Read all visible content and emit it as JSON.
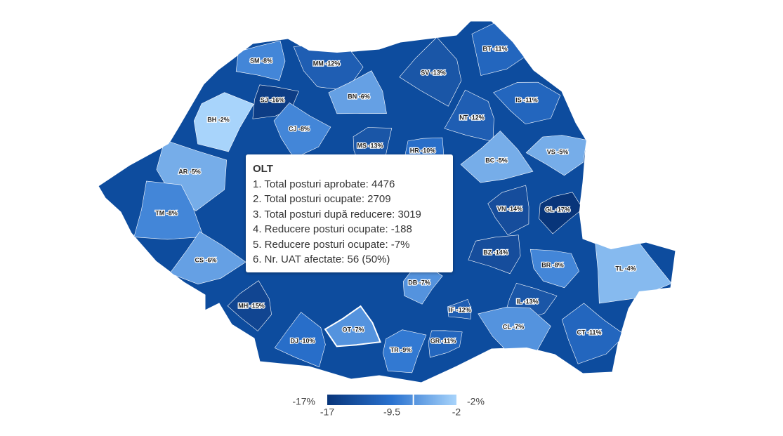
{
  "map": {
    "counties": [
      {
        "label": "SM -8%",
        "value": -8
      },
      {
        "label": "MM -12%",
        "value": -12
      },
      {
        "label": "BT -11%",
        "value": -11
      },
      {
        "label": "SV -13%",
        "value": -13
      },
      {
        "label": "BH -2%",
        "value": -2
      },
      {
        "label": "SJ -16%",
        "value": -16
      },
      {
        "label": "BN -6%",
        "value": -6
      },
      {
        "label": "IS -11%",
        "value": -11
      },
      {
        "label": "CJ -8%",
        "value": -8
      },
      {
        "label": "NT -12%",
        "value": -12
      },
      {
        "label": "MS -13%",
        "value": -13
      },
      {
        "label": "HR -10%",
        "value": -10
      },
      {
        "label": "BC -5%",
        "value": -5
      },
      {
        "label": "VS -5%",
        "value": -5
      },
      {
        "label": "AR -5%",
        "value": -5
      },
      {
        "label": "TM -8%",
        "value": -8
      },
      {
        "label": "VN -14%",
        "value": -14
      },
      {
        "label": "GL -17%",
        "value": -17
      },
      {
        "label": "CS -6%",
        "value": -6
      },
      {
        "label": "BZ -14%",
        "value": -14
      },
      {
        "label": "BR -8%",
        "value": -8
      },
      {
        "label": "TL -4%",
        "value": -4
      },
      {
        "label": "MH -15%",
        "value": -15
      },
      {
        "label": "DB -7%",
        "value": -7
      },
      {
        "label": "IL -13%",
        "value": -13
      },
      {
        "label": "IF -12%",
        "value": -12
      },
      {
        "label": "CL -7%",
        "value": -7
      },
      {
        "label": "CT -11%",
        "value": -11
      },
      {
        "label": "DJ -10%",
        "value": -10
      },
      {
        "label": "TR -9%",
        "value": -9
      },
      {
        "label": "GR -11%",
        "value": -11
      },
      {
        "label": "OT -7%",
        "value": -7
      }
    ],
    "tooltip": {
      "title": "OLT",
      "lines": [
        "1. Total posturi aprobate: 4476",
        "2. Total posturi ocupate: 2709",
        "3. Total posturi după reducere: 3019",
        "4. Reducere posturi ocupate: -188",
        "5. Reducere posturi ocupate: -7%",
        "6. Nr. UAT afectate: 56 (50%)"
      ]
    },
    "legend": {
      "min_label": "-17%",
      "max_label": "-2%",
      "range": [
        -17,
        -2
      ],
      "ticks": [
        -17,
        -9.5,
        -2
      ],
      "highlight": -7
    }
  }
}
